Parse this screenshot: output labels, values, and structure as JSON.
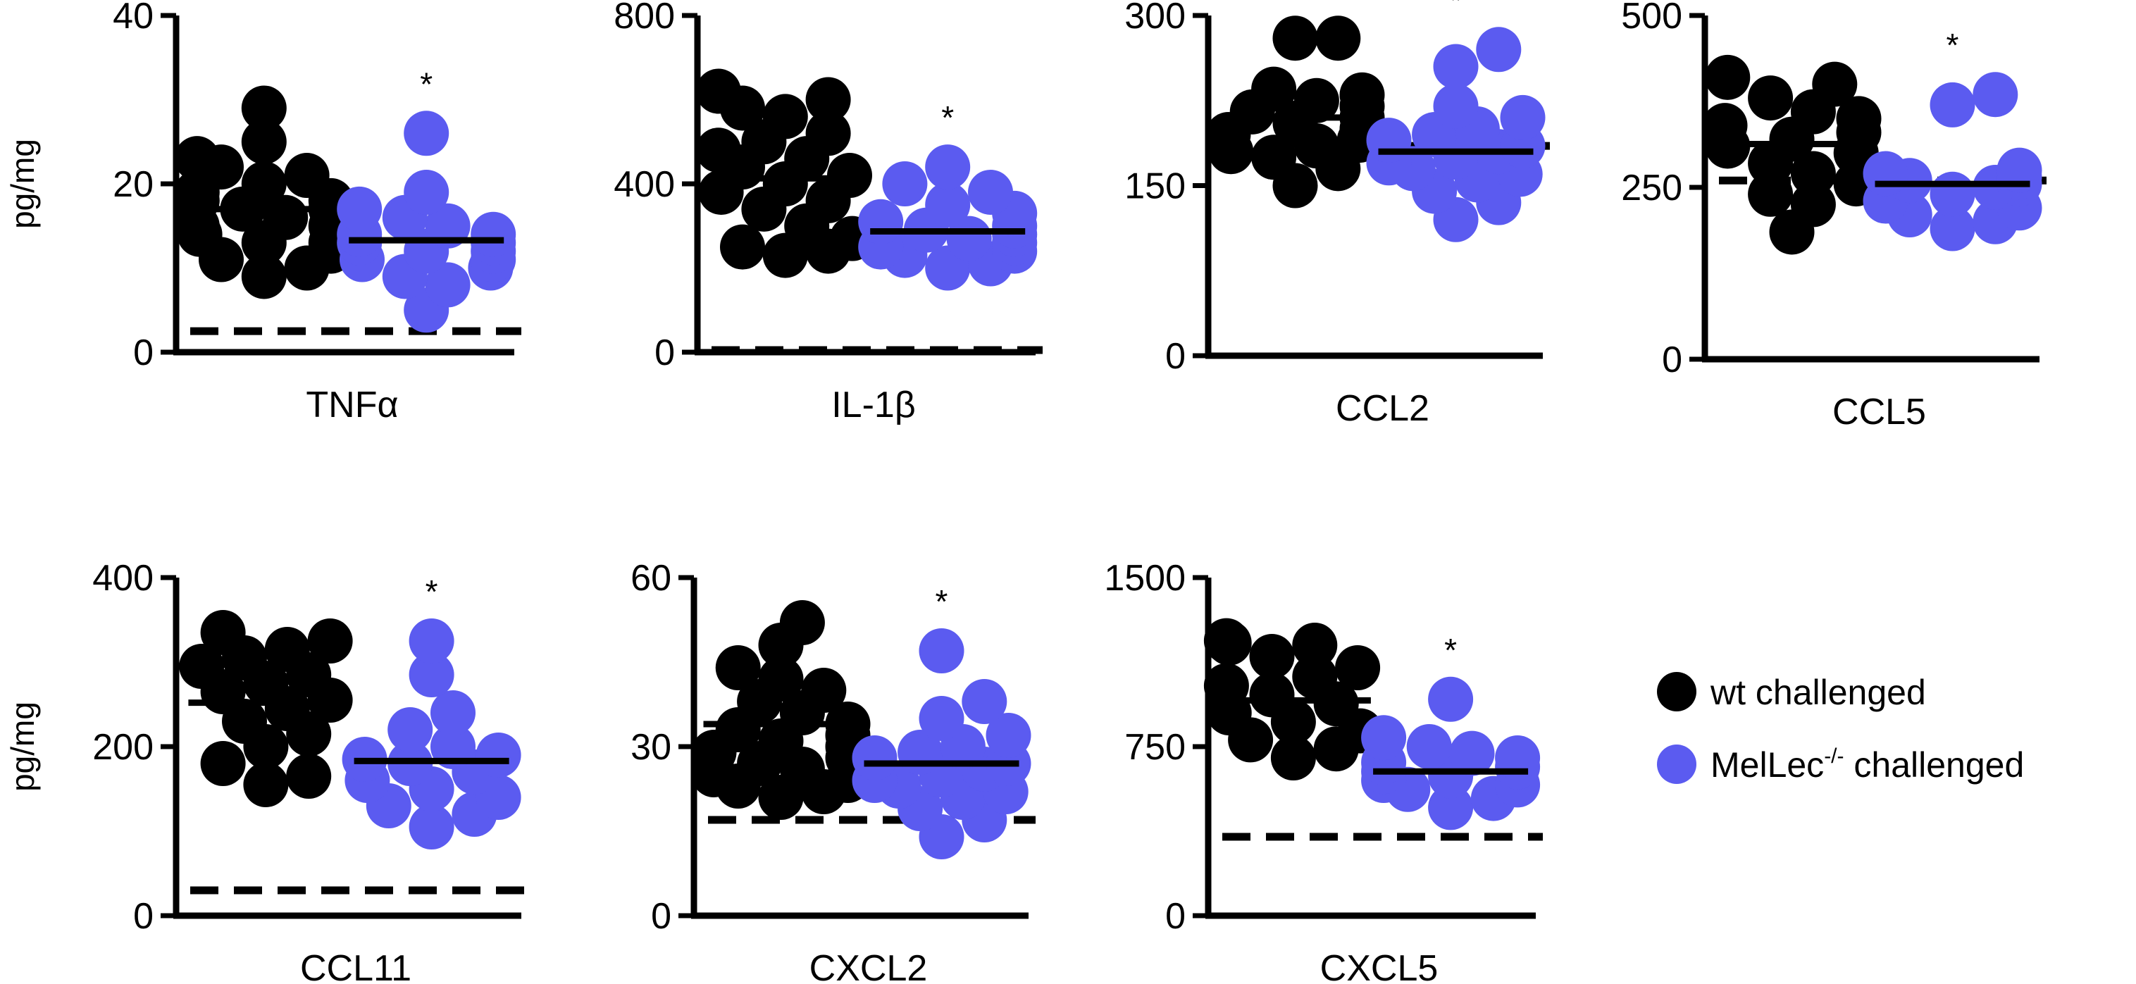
{
  "legend": {
    "items": [
      {
        "label_main": "wt challenged",
        "label_sup": "",
        "label_tail": "",
        "color": "#000000"
      },
      {
        "label_main": "MelLec",
        "label_sup": "-/-",
        "label_tail": " challenged",
        "color": "#5b5bf0"
      }
    ]
  },
  "colors": {
    "wt": "#000000",
    "ko": "#5b5bf0"
  },
  "chart_data": [
    {
      "type": "scatter",
      "xlabel": "TNFα",
      "ylabel": "pg/mg",
      "ylim": [
        0,
        40
      ],
      "yticks": [
        "0",
        "20",
        "40"
      ],
      "dashed_line": 2.5,
      "significance": "*",
      "series": [
        {
          "name": "wt challenged",
          "mean": 17,
          "values": [
            9,
            10,
            11,
            12,
            13,
            13,
            14,
            15,
            15,
            16,
            17,
            17,
            18,
            18,
            19,
            20,
            21,
            22,
            23,
            25,
            29
          ]
        },
        {
          "name": "MelLec-/- challenged",
          "mean": 13.3,
          "values": [
            5,
            8,
            9,
            10,
            11,
            11,
            12,
            12,
            13,
            13,
            14,
            14,
            15,
            16,
            17,
            19,
            26
          ]
        }
      ]
    },
    {
      "type": "scatter",
      "xlabel": "IL-1β",
      "ylabel": "",
      "ylim": [
        0,
        800
      ],
      "yticks": [
        "0",
        "400",
        "800"
      ],
      "dashed_line": 5,
      "significance": "*",
      "series": [
        {
          "name": "wt challenged",
          "mean": 413,
          "values": [
            230,
            240,
            250,
            270,
            300,
            340,
            360,
            380,
            400,
            420,
            440,
            460,
            480,
            500,
            520,
            560,
            580,
            600,
            620
          ]
        },
        {
          "name": "MelLec-/- challenged",
          "mean": 287,
          "values": [
            200,
            210,
            230,
            240,
            250,
            260,
            270,
            280,
            290,
            300,
            310,
            330,
            350,
            380,
            400,
            440
          ]
        }
      ]
    },
    {
      "type": "scatter",
      "xlabel": "CCL2",
      "ylabel": "",
      "ylim": [
        0,
        300
      ],
      "yticks": [
        "0",
        "150",
        "300"
      ],
      "dashed_line": 185,
      "significance": "*",
      "series": [
        {
          "name": "wt challenged",
          "mean": 210,
          "values": [
            150,
            165,
            175,
            180,
            185,
            190,
            195,
            200,
            205,
            210,
            215,
            220,
            225,
            230,
            235,
            280,
            280
          ]
        },
        {
          "name": "MelLec-/- challenged",
          "mean": 180,
          "values": [
            120,
            135,
            145,
            155,
            160,
            165,
            170,
            175,
            180,
            185,
            190,
            195,
            200,
            210,
            220,
            255,
            270
          ]
        }
      ]
    },
    {
      "type": "scatter",
      "xlabel": "CCL5",
      "ylabel": "",
      "ylim": [
        0,
        500
      ],
      "yticks": [
        "0",
        "250",
        "500"
      ],
      "dashed_line": 260,
      "significance": "*",
      "series": [
        {
          "name": "wt challenged",
          "mean": 313,
          "values": [
            185,
            225,
            240,
            255,
            270,
            285,
            300,
            310,
            320,
            330,
            340,
            350,
            360,
            380,
            400,
            410
          ]
        },
        {
          "name": "MelLec-/- challenged",
          "mean": 255,
          "values": [
            190,
            200,
            210,
            220,
            230,
            240,
            250,
            255,
            260,
            265,
            270,
            275,
            370,
            385
          ]
        }
      ]
    },
    {
      "type": "scatter",
      "xlabel": "CCL11",
      "ylabel": "pg/mg",
      "ylim": [
        0,
        400
      ],
      "yticks": [
        "0",
        "200",
        "400"
      ],
      "dashed_line": 30,
      "significance": "*",
      "series": [
        {
          "name": "wt challenged",
          "mean": 252,
          "values": [
            155,
            165,
            180,
            200,
            215,
            230,
            245,
            255,
            265,
            275,
            285,
            295,
            305,
            315,
            325,
            335
          ]
        },
        {
          "name": "MelLec-/- challenged",
          "mean": 183,
          "values": [
            105,
            120,
            130,
            140,
            150,
            160,
            170,
            180,
            185,
            190,
            200,
            220,
            240,
            285,
            325
          ]
        }
      ]
    },
    {
      "type": "scatter",
      "xlabel": "CXCL2",
      "ylabel": "",
      "ylim": [
        0,
        60
      ],
      "yticks": [
        "0",
        "30",
        "60"
      ],
      "dashed_line": 17,
      "significance": "*",
      "series": [
        {
          "name": "wt challenged",
          "mean": 34,
          "values": [
            21,
            22,
            23,
            24,
            25,
            26,
            27,
            28,
            29,
            30,
            31,
            32,
            33,
            34,
            36,
            38,
            40,
            42,
            44,
            48,
            52
          ]
        },
        {
          "name": "MelLec-/- challenged",
          "mean": 27,
          "values": [
            14,
            17,
            19,
            21,
            22,
            23,
            24,
            25,
            26,
            27,
            28,
            29,
            30,
            32,
            35,
            38,
            47
          ]
        }
      ]
    },
    {
      "type": "scatter",
      "xlabel": "CXCL5",
      "ylabel": "",
      "ylim": [
        0,
        1500
      ],
      "yticks": [
        "0",
        "750",
        "1500"
      ],
      "dashed_line": 350,
      "significance": "*",
      "series": [
        {
          "name": "wt challenged",
          "mean": 955,
          "values": [
            700,
            740,
            780,
            820,
            860,
            900,
            940,
            980,
            1020,
            1060,
            1100,
            1150,
            1200,
            1210,
            1220
          ]
        },
        {
          "name": "MelLec-/- challenged",
          "mean": 640,
          "values": [
            480,
            520,
            560,
            580,
            600,
            620,
            640,
            660,
            680,
            700,
            720,
            750,
            790,
            960
          ]
        }
      ]
    }
  ]
}
